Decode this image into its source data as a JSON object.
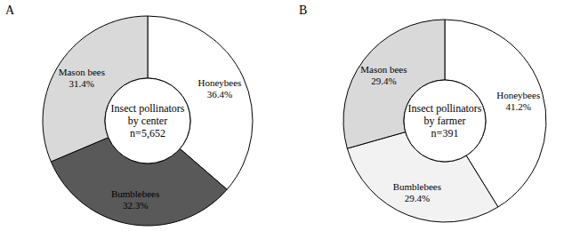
{
  "chart_data": [
    {
      "type": "pie",
      "title": "A",
      "annotations": [
        "Insect pollinators",
        "by center",
        "n=5,652"
      ],
      "categories": [
        "Honeybees",
        "Bumblebees",
        "Mason bees"
      ],
      "values": [
        36.4,
        32.3,
        31.4
      ],
      "value_labels": [
        "36.4%",
        "32.3%",
        "31.4%"
      ],
      "colors": [
        "#ffffff",
        "#595959",
        "#d9d9d9"
      ],
      "data_labels": true
    },
    {
      "type": "pie",
      "title": "B",
      "annotations": [
        "Insect pollinators",
        "by farmer",
        "n=391"
      ],
      "categories": [
        "Honeybees",
        "Bumblebees",
        "Mason bees"
      ],
      "values": [
        41.2,
        29.4,
        29.4
      ],
      "value_labels": [
        "41.2%",
        "29.4%",
        "29.4%"
      ],
      "colors": [
        "#ffffff",
        "#f2f2f2",
        "#d9d9d9"
      ],
      "data_labels": true
    }
  ]
}
